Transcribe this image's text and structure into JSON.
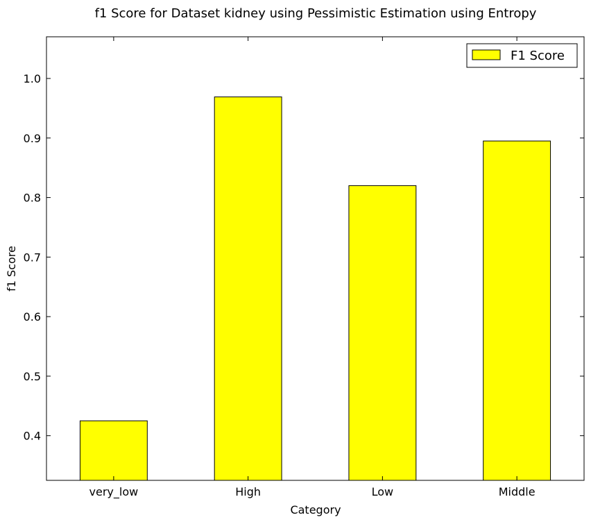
{
  "chart_data": {
    "type": "bar",
    "title": "f1 Score for Dataset kidney using Pessimistic Estimation using Entropy",
    "xlabel": "Category",
    "ylabel": "f1 Score",
    "categories": [
      "very_low",
      "High",
      "Low",
      "Middle"
    ],
    "series": [
      {
        "name": "F1 Score",
        "values": [
          0.425,
          0.969,
          0.82,
          0.895
        ]
      }
    ],
    "ylim": [
      0.325,
      1.07
    ],
    "yticks": [
      "0.4",
      "0.5",
      "0.6",
      "0.7",
      "0.8",
      "0.9",
      "1.0"
    ],
    "legend_position": "top-right",
    "bar_color": "#ffff00",
    "edge_color": "#000000",
    "grid": false
  }
}
